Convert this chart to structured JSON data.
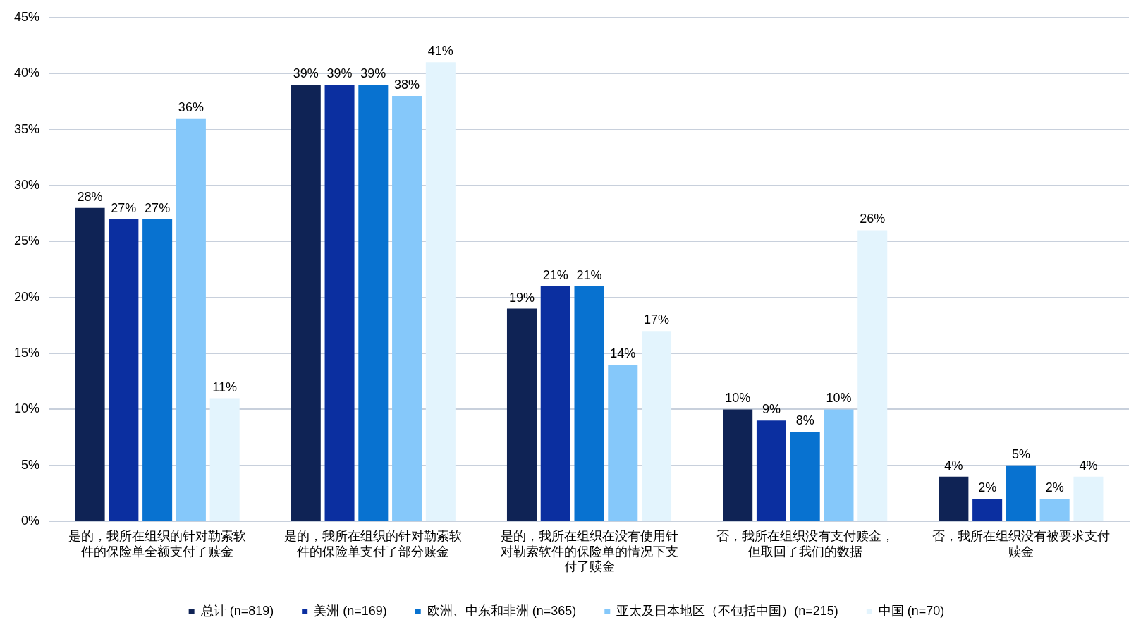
{
  "chart_data": {
    "type": "bar",
    "categories": [
      "是的，我所在组织的针对勒索软件的保险单全额支付了赎金",
      "是的，我所在组织的针对勒索软件的保险单支付了部分赎金",
      "是的，我所在组织在没有使用针对勒索软件的保险单的情况下支付了赎金",
      "否，我所在组织没有支付赎金，但取回了我们的数据",
      "否，我所在组织没有被要求支付赎金"
    ],
    "series": [
      {
        "name": "总计 (n=819)",
        "color": "#0f2355",
        "values": [
          28,
          39,
          19,
          10,
          4
        ],
        "value_labels": [
          "28%",
          "39%",
          "19%",
          "10%",
          "4%"
        ]
      },
      {
        "name": "美洲 (n=169)",
        "color": "#0b2fa0",
        "values": [
          27,
          39,
          21,
          9,
          2
        ],
        "value_labels": [
          "27%",
          "39%",
          "21%",
          "9%",
          "2%"
        ]
      },
      {
        "name": "欧洲、中东和非洲 (n=365)",
        "color": "#0872d0",
        "values": [
          27,
          39,
          21,
          8,
          5
        ],
        "value_labels": [
          "27%",
          "39%",
          "21%",
          "8%",
          "5%"
        ]
      },
      {
        "name": "亚太及日本地区（不包括中国）(n=215)",
        "color": "#85c8fa",
        "values": [
          36,
          38,
          14,
          10,
          2
        ],
        "value_labels": [
          "36%",
          "38%",
          "14%",
          "10%",
          "2%"
        ]
      },
      {
        "name": "中国 (n=70)",
        "color": "#e3f4fd",
        "values": [
          11,
          41,
          17,
          26,
          4
        ],
        "value_labels": [
          "11%",
          "41%",
          "17%",
          "26%",
          "4%"
        ]
      }
    ],
    "ylim": [
      0,
      45
    ],
    "yticks": [
      {
        "value": 0,
        "label": "0%"
      },
      {
        "value": 5,
        "label": "5%"
      },
      {
        "value": 10,
        "label": "10%"
      },
      {
        "value": 15,
        "label": "15%"
      },
      {
        "value": 20,
        "label": "20%"
      },
      {
        "value": 25,
        "label": "25%"
      },
      {
        "value": 30,
        "label": "30%"
      },
      {
        "value": 35,
        "label": "35%"
      },
      {
        "value": 40,
        "label": "40%"
      },
      {
        "value": 45,
        "label": "45%"
      }
    ],
    "grid": "y",
    "legend": "bottom"
  }
}
